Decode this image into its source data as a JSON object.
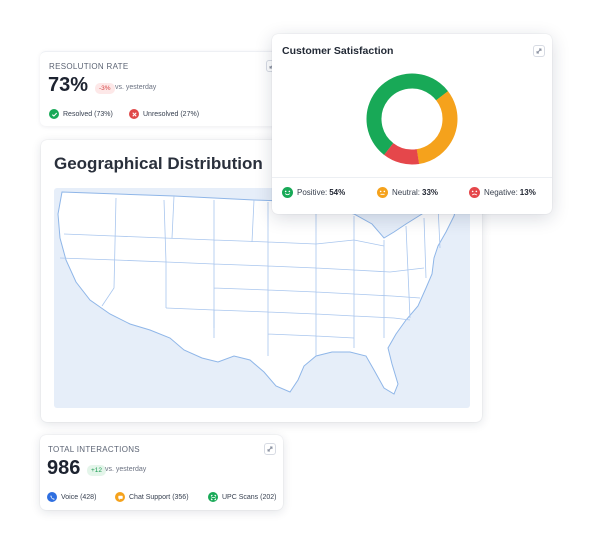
{
  "resolution": {
    "label": "RESOLUTION RATE",
    "value": "73%",
    "delta": "-3%",
    "vs": "vs. yesterday",
    "legend": [
      {
        "label": "Resolved (73%)",
        "color": "#18a957",
        "icon": "check-icon"
      },
      {
        "label": "Unresolved (27%)",
        "color": "#e04848",
        "icon": "x-icon"
      }
    ]
  },
  "geo": {
    "title": "Geographical Distribution"
  },
  "satisfaction": {
    "title": "Customer Satisfaction",
    "chart_data": {
      "type": "pie",
      "categories": [
        "Positive",
        "Neutral",
        "Negative"
      ],
      "values": [
        54,
        33,
        13
      ],
      "colors": [
        "#18a957",
        "#f5a21c",
        "#e5474b"
      ]
    },
    "legend": [
      {
        "label": "Positive:",
        "value": "54%",
        "color": "#18a957",
        "icon": "smile-icon"
      },
      {
        "label": "Neutral:",
        "value": "33%",
        "color": "#f5a21c",
        "icon": "neutral-face-icon"
      },
      {
        "label": "Negative:",
        "value": "13%",
        "color": "#e5474b",
        "icon": "frown-icon"
      }
    ]
  },
  "total": {
    "label": "TOTAL INTERACTIONS",
    "value": "986",
    "delta": "+12",
    "vs": "vs. yesterday",
    "legend": [
      {
        "label": "Voice (428)",
        "color": "#2f6fe0",
        "icon": "phone-icon"
      },
      {
        "label": "Chat Support (356)",
        "color": "#f5a21c",
        "icon": "chat-icon"
      },
      {
        "label": "UPC Scans (202)",
        "color": "#18a957",
        "icon": "scan-icon"
      }
    ]
  }
}
